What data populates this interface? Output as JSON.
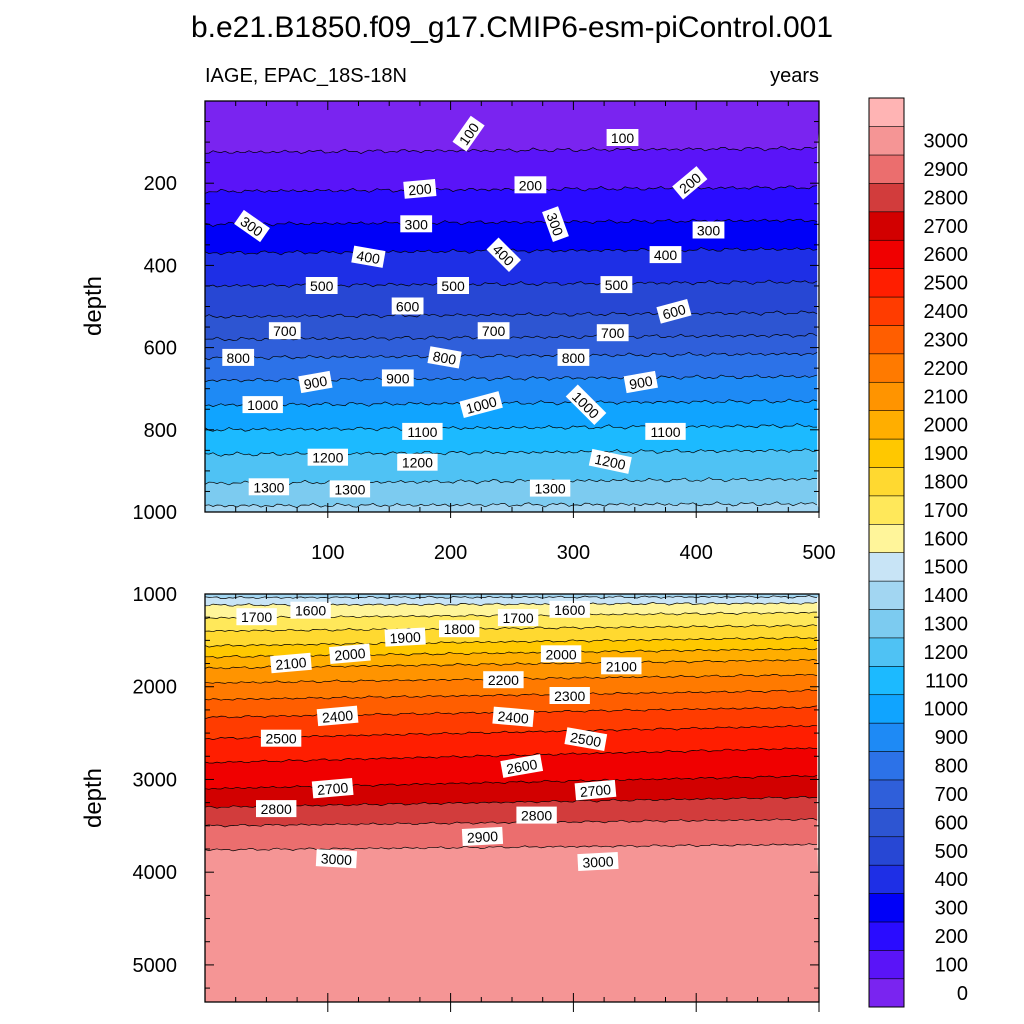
{
  "chart_data": {
    "type": "contour",
    "title": "b.e21.B1850.f09_g17.CMIP6-esm-piControl.001",
    "left_label": "IAGE, EPAC_18S-18N",
    "right_label": "years",
    "x": {
      "label": "",
      "range": [
        0,
        500
      ],
      "ticks": [
        100,
        200,
        300,
        400,
        500
      ],
      "tick_labels": [
        "100",
        "200",
        "300",
        "400",
        "500"
      ]
    },
    "colorbar": {
      "levels": [
        0,
        100,
        200,
        300,
        400,
        500,
        600,
        700,
        800,
        900,
        1000,
        1100,
        1200,
        1300,
        1400,
        1500,
        1600,
        1700,
        1800,
        1900,
        2000,
        2100,
        2200,
        2300,
        2400,
        2500,
        2600,
        2700,
        2800,
        2900,
        3000
      ],
      "level_labels": [
        "0",
        "100",
        "200",
        "300",
        "400",
        "500",
        "600",
        "700",
        "800",
        "900",
        "1000",
        "1100",
        "1200",
        "1300",
        "1400",
        "1500",
        "1600",
        "1700",
        "1800",
        "1900",
        "2000",
        "2100",
        "2200",
        "2300",
        "2400",
        "2500",
        "2600",
        "2700",
        "2800",
        "2900",
        "3000"
      ],
      "colors": [
        "#7A24F0",
        "#5A14F8",
        "#2A0CFF",
        "#0000F8",
        "#1E2FE6",
        "#2747D4",
        "#2D55D2",
        "#2F5FDA",
        "#2C72E8",
        "#1E8AF5",
        "#10A4FF",
        "#1CBAFF",
        "#4FC2F4",
        "#7CCBF0",
        "#A2D6F2",
        "#C8E4F6",
        "#FFF59A",
        "#FFE85A",
        "#FFD930",
        "#FFC800",
        "#FFAE00",
        "#FF9400",
        "#FF7A00",
        "#FF5E00",
        "#FF3C00",
        "#FF1E00",
        "#F00000",
        "#D20000",
        "#D23C3C",
        "#EB6E6E",
        "#F59595",
        "#FFB4B4"
      ]
    },
    "panels": [
      {
        "name": "upper",
        "ylabel": "depth",
        "ylim": [
          0,
          1000
        ],
        "yticks": [
          200,
          400,
          600,
          800,
          1000
        ],
        "ytick_labels": [
          "200",
          "400",
          "600",
          "800",
          "1000"
        ],
        "contour_depths": [
          {
            "level": 100,
            "depth_start": 125,
            "depth_end": 115
          },
          {
            "level": 200,
            "depth_start": 220,
            "depth_end": 210
          },
          {
            "level": 300,
            "depth_start": 300,
            "depth_end": 290
          },
          {
            "level": 400,
            "depth_start": 370,
            "depth_end": 360
          },
          {
            "level": 500,
            "depth_start": 450,
            "depth_end": 440
          },
          {
            "level": 600,
            "depth_start": 525,
            "depth_end": 515
          },
          {
            "level": 700,
            "depth_start": 580,
            "depth_end": 570
          },
          {
            "level": 800,
            "depth_start": 625,
            "depth_end": 615
          },
          {
            "level": 900,
            "depth_start": 680,
            "depth_end": 670
          },
          {
            "level": 1000,
            "depth_start": 740,
            "depth_end": 730
          },
          {
            "level": 1100,
            "depth_start": 800,
            "depth_end": 790
          },
          {
            "level": 1200,
            "depth_start": 860,
            "depth_end": 850
          },
          {
            "level": 1300,
            "depth_start": 930,
            "depth_end": 920
          },
          {
            "level": 1400,
            "depth_start": 985,
            "depth_end": 980
          }
        ],
        "labels": [
          {
            "text": "100",
            "x": 215,
            "depth": 80,
            "angle": -55
          },
          {
            "text": "100",
            "x": 340,
            "depth": 90,
            "angle": 0
          },
          {
            "text": "200",
            "x": 175,
            "depth": 215,
            "angle": -5
          },
          {
            "text": "200",
            "x": 265,
            "depth": 205,
            "angle": 0
          },
          {
            "text": "200",
            "x": 395,
            "depth": 200,
            "angle": -40
          },
          {
            "text": "300",
            "x": 38,
            "depth": 305,
            "angle": 35
          },
          {
            "text": "300",
            "x": 172,
            "depth": 300,
            "angle": 0
          },
          {
            "text": "300",
            "x": 285,
            "depth": 300,
            "angle": 70
          },
          {
            "text": "300",
            "x": 410,
            "depth": 315,
            "angle": 0
          },
          {
            "text": "400",
            "x": 133,
            "depth": 380,
            "angle": 10
          },
          {
            "text": "400",
            "x": 243,
            "depth": 375,
            "angle": 45
          },
          {
            "text": "400",
            "x": 375,
            "depth": 375,
            "angle": 0
          },
          {
            "text": "500",
            "x": 95,
            "depth": 450,
            "angle": 0
          },
          {
            "text": "500",
            "x": 202,
            "depth": 450,
            "angle": 0
          },
          {
            "text": "500",
            "x": 335,
            "depth": 448,
            "angle": 0
          },
          {
            "text": "600",
            "x": 165,
            "depth": 500,
            "angle": 0
          },
          {
            "text": "600",
            "x": 382,
            "depth": 513,
            "angle": -15
          },
          {
            "text": "700",
            "x": 65,
            "depth": 560,
            "angle": 0
          },
          {
            "text": "700",
            "x": 235,
            "depth": 560,
            "angle": 0
          },
          {
            "text": "700",
            "x": 332,
            "depth": 565,
            "angle": 0
          },
          {
            "text": "800",
            "x": 27,
            "depth": 625,
            "angle": 0
          },
          {
            "text": "800",
            "x": 195,
            "depth": 625,
            "angle": 10
          },
          {
            "text": "800",
            "x": 300,
            "depth": 625,
            "angle": 0
          },
          {
            "text": "900",
            "x": 90,
            "depth": 685,
            "angle": -10
          },
          {
            "text": "900",
            "x": 157,
            "depth": 675,
            "angle": 0
          },
          {
            "text": "900",
            "x": 355,
            "depth": 685,
            "angle": -10
          },
          {
            "text": "1000",
            "x": 47,
            "depth": 740,
            "angle": 0
          },
          {
            "text": "1000",
            "x": 225,
            "depth": 740,
            "angle": -15
          },
          {
            "text": "1000",
            "x": 310,
            "depth": 740,
            "angle": 45
          },
          {
            "text": "1100",
            "x": 177,
            "depth": 805,
            "angle": 0
          },
          {
            "text": "1100",
            "x": 375,
            "depth": 805,
            "angle": 0
          },
          {
            "text": "1200",
            "x": 100,
            "depth": 868,
            "angle": 0
          },
          {
            "text": "1200",
            "x": 173,
            "depth": 880,
            "angle": 0
          },
          {
            "text": "1200",
            "x": 330,
            "depth": 878,
            "angle": 12
          },
          {
            "text": "1300",
            "x": 52,
            "depth": 940,
            "angle": 0
          },
          {
            "text": "1300",
            "x": 118,
            "depth": 945,
            "angle": 0
          },
          {
            "text": "1300",
            "x": 281,
            "depth": 943,
            "angle": 0
          }
        ]
      },
      {
        "name": "lower",
        "ylabel": "depth",
        "ylim": [
          1000,
          5400
        ],
        "yticks": [
          1000,
          2000,
          3000,
          4000,
          5000
        ],
        "ytick_labels": [
          "1000",
          "2000",
          "3000",
          "4000",
          "5000"
        ],
        "contour_depths": [
          {
            "level": 1500,
            "depth_start": 1040,
            "depth_end": 1030
          },
          {
            "level": 1600,
            "depth_start": 1120,
            "depth_end": 1100
          },
          {
            "level": 1700,
            "depth_start": 1260,
            "depth_end": 1200
          },
          {
            "level": 1800,
            "depth_start": 1400,
            "depth_end": 1340
          },
          {
            "level": 1900,
            "depth_start": 1560,
            "depth_end": 1470
          },
          {
            "level": 2000,
            "depth_start": 1680,
            "depth_end": 1590
          },
          {
            "level": 2100,
            "depth_start": 1800,
            "depth_end": 1710
          },
          {
            "level": 2200,
            "depth_start": 1960,
            "depth_end": 1870
          },
          {
            "level": 2300,
            "depth_start": 2140,
            "depth_end": 2040
          },
          {
            "level": 2400,
            "depth_start": 2330,
            "depth_end": 2220
          },
          {
            "level": 2500,
            "depth_start": 2560,
            "depth_end": 2420
          },
          {
            "level": 2600,
            "depth_start": 2820,
            "depth_end": 2660
          },
          {
            "level": 2700,
            "depth_start": 3100,
            "depth_end": 2960
          },
          {
            "level": 2800,
            "depth_start": 3300,
            "depth_end": 3190
          },
          {
            "level": 2900,
            "depth_start": 3500,
            "depth_end": 3430
          },
          {
            "level": 3000,
            "depth_start": 3760,
            "depth_end": 3700
          }
        ],
        "labels": [
          {
            "text": "1700",
            "x": 42,
            "depth": 1250,
            "angle": 0
          },
          {
            "text": "1600",
            "x": 86,
            "depth": 1180,
            "angle": 0
          },
          {
            "text": "1900",
            "x": 163,
            "depth": 1470,
            "angle": -3
          },
          {
            "text": "1800",
            "x": 207,
            "depth": 1380,
            "angle": 0
          },
          {
            "text": "1700",
            "x": 255,
            "depth": 1260,
            "angle": 0
          },
          {
            "text": "1600",
            "x": 297,
            "depth": 1170,
            "angle": 0
          },
          {
            "text": "2100",
            "x": 70,
            "depth": 1750,
            "angle": -5
          },
          {
            "text": "2000",
            "x": 118,
            "depth": 1650,
            "angle": -5
          },
          {
            "text": "2000",
            "x": 290,
            "depth": 1650,
            "angle": 0
          },
          {
            "text": "2100",
            "x": 339,
            "depth": 1780,
            "angle": 0
          },
          {
            "text": "2200",
            "x": 243,
            "depth": 1930,
            "angle": 0
          },
          {
            "text": "2300",
            "x": 297,
            "depth": 2100,
            "angle": 0
          },
          {
            "text": "2400",
            "x": 108,
            "depth": 2320,
            "angle": -5
          },
          {
            "text": "2400",
            "x": 251,
            "depth": 2330,
            "angle": 5
          },
          {
            "text": "2500",
            "x": 62,
            "depth": 2560,
            "angle": 0
          },
          {
            "text": "2500",
            "x": 310,
            "depth": 2570,
            "angle": 10
          },
          {
            "text": "2600",
            "x": 258,
            "depth": 2860,
            "angle": -10
          },
          {
            "text": "2700",
            "x": 104,
            "depth": 3100,
            "angle": -5
          },
          {
            "text": "2700",
            "x": 318,
            "depth": 3120,
            "angle": -5
          },
          {
            "text": "2800",
            "x": 58,
            "depth": 3320,
            "angle": 0
          },
          {
            "text": "2800",
            "x": 270,
            "depth": 3390,
            "angle": 0
          },
          {
            "text": "2900",
            "x": 226,
            "depth": 3620,
            "angle": -3
          },
          {
            "text": "3000",
            "x": 107,
            "depth": 3860,
            "angle": 3
          },
          {
            "text": "3000",
            "x": 320,
            "depth": 3890,
            "angle": -3
          }
        ]
      }
    ]
  }
}
